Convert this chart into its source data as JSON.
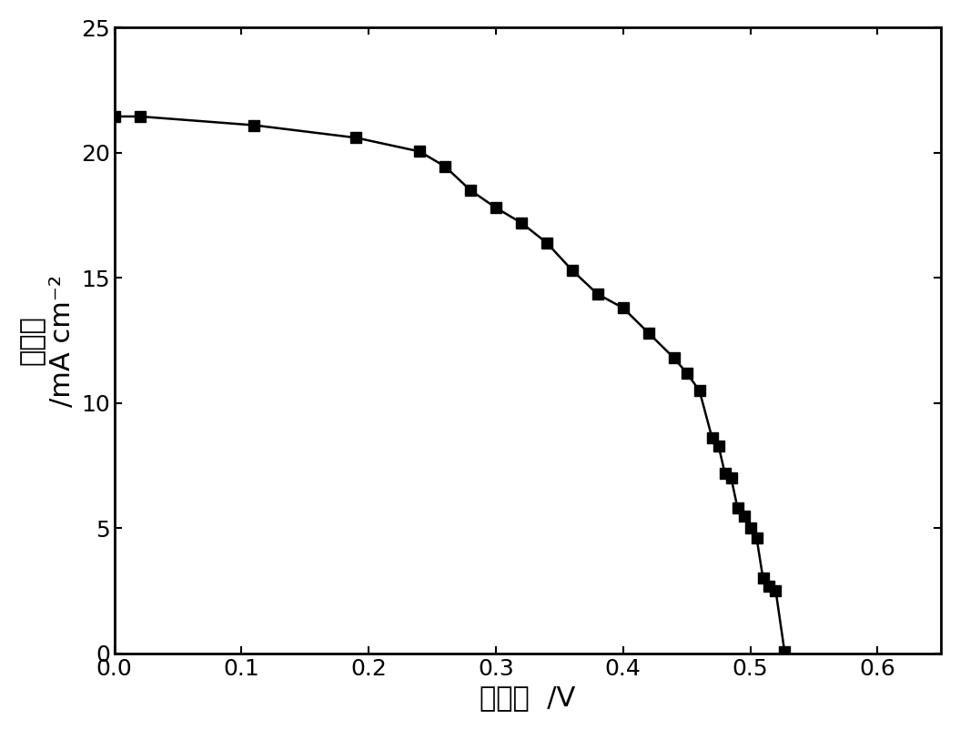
{
  "x": [
    0.0,
    0.02,
    0.11,
    0.19,
    0.24,
    0.26,
    0.28,
    0.3,
    0.32,
    0.34,
    0.36,
    0.38,
    0.4,
    0.42,
    0.44,
    0.45,
    0.46,
    0.47,
    0.475,
    0.48,
    0.485,
    0.49,
    0.495,
    0.5,
    0.505,
    0.51,
    0.515,
    0.52,
    0.527
  ],
  "y": [
    21.45,
    21.45,
    21.1,
    20.6,
    20.05,
    19.45,
    18.5,
    17.8,
    17.2,
    16.4,
    15.3,
    14.35,
    13.8,
    12.8,
    11.8,
    11.2,
    10.5,
    8.6,
    8.3,
    7.2,
    7.0,
    5.8,
    5.5,
    5.0,
    4.6,
    3.0,
    2.7,
    2.5,
    0.05
  ],
  "marker": "s",
  "marker_size": 8,
  "line_color": "#000000",
  "marker_color": "#000000",
  "xlabel": "光电压  /V",
  "ylabel": "光电流  /mA cm⁻²",
  "ylabel_line1": "光电流",
  "ylabel_line2": "/mA cm⁻²",
  "xlim": [
    0.0,
    0.65
  ],
  "ylim": [
    0.0,
    25.0
  ],
  "xticks": [
    0.0,
    0.1,
    0.2,
    0.3,
    0.4,
    0.5,
    0.6
  ],
  "yticks": [
    0,
    5,
    10,
    15,
    20,
    25
  ],
  "xlabel_fontsize": 22,
  "ylabel_fontsize": 22,
  "tick_fontsize": 18,
  "figsize": [
    10.55,
    8.02
  ],
  "dpi": 100
}
